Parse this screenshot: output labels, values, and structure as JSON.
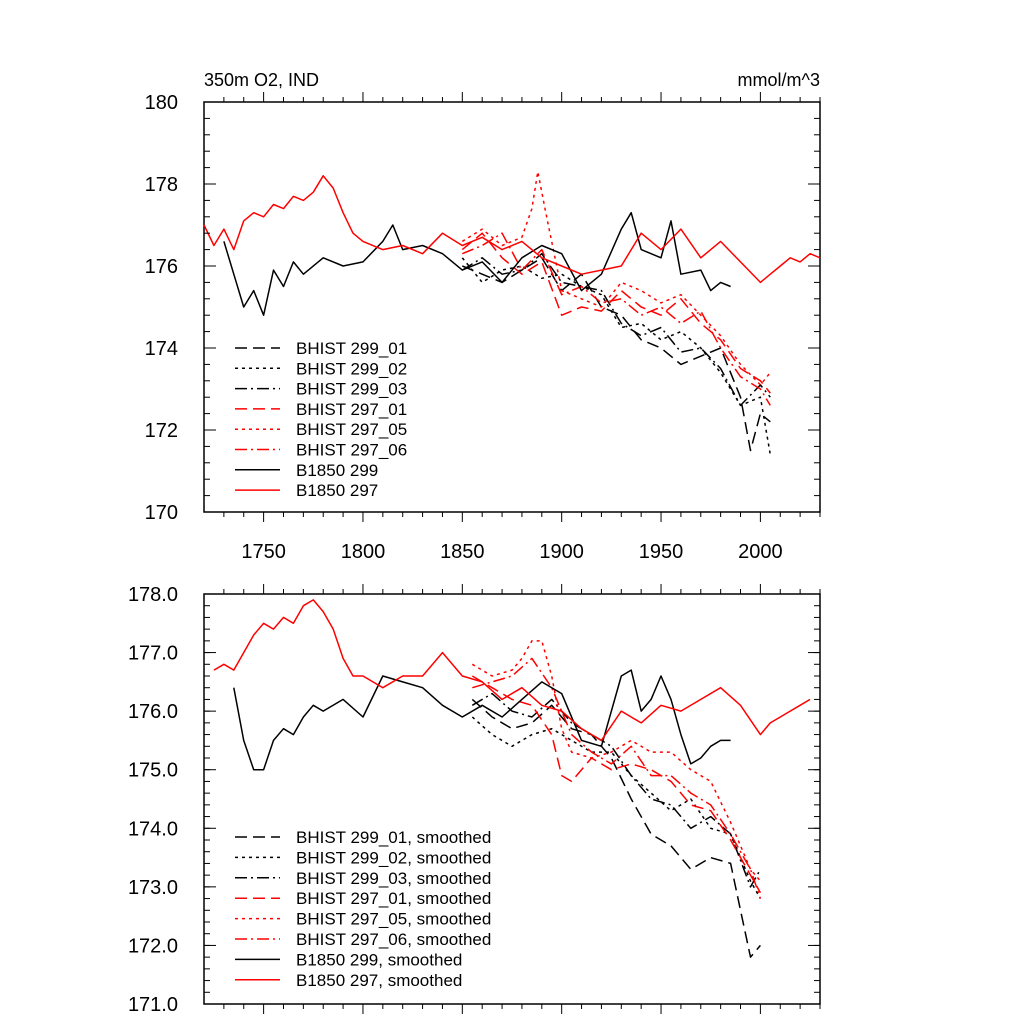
{
  "colors": {
    "black": "#000000",
    "red": "#ff0000"
  },
  "chart_data": [
    {
      "type": "line",
      "title": "350m O2, IND",
      "units": "mmol/m^3",
      "xlim": [
        1720,
        2030
      ],
      "ylim": [
        170,
        180
      ],
      "xticks": [
        1750,
        1800,
        1850,
        1900,
        1950,
        2000
      ],
      "yticks": [
        170,
        172,
        174,
        176,
        178,
        180
      ],
      "ytick_labels": [
        "170",
        "172",
        "174",
        "176",
        "178",
        "180"
      ],
      "series": [
        {
          "name": "BHIST 299_01",
          "color": "#000000",
          "dash": "dashed",
          "x": [
            1850,
            1860,
            1870,
            1880,
            1890,
            1900,
            1910,
            1920,
            1930,
            1940,
            1950,
            1960,
            1970,
            1980,
            1990,
            1995,
            2000,
            2005
          ],
          "y": [
            176.0,
            175.8,
            175.6,
            175.9,
            176.2,
            175.4,
            175.8,
            175.0,
            174.8,
            174.2,
            174.0,
            173.6,
            173.8,
            174.0,
            172.8,
            171.5,
            172.4,
            172.2
          ]
        },
        {
          "name": "BHIST 299_02",
          "color": "#000000",
          "dash": "dotted",
          "x": [
            1850,
            1860,
            1870,
            1880,
            1890,
            1900,
            1910,
            1920,
            1930,
            1940,
            1950,
            1960,
            1970,
            1980,
            1990,
            2000,
            2005
          ],
          "y": [
            176.2,
            175.6,
            175.9,
            176.0,
            175.7,
            175.8,
            175.5,
            175.3,
            174.5,
            174.6,
            174.2,
            174.4,
            174.0,
            173.4,
            172.6,
            172.8,
            171.4
          ]
        },
        {
          "name": "BHIST 299_03",
          "color": "#000000",
          "dash": "dashdot",
          "x": [
            1850,
            1860,
            1870,
            1880,
            1890,
            1900,
            1910,
            1920,
            1930,
            1940,
            1950,
            1960,
            1970,
            1980,
            1990,
            2000,
            2005
          ],
          "y": [
            175.9,
            176.2,
            175.8,
            175.9,
            176.3,
            175.6,
            175.5,
            175.4,
            174.6,
            174.3,
            174.5,
            173.9,
            174.0,
            173.5,
            172.6,
            173.1,
            172.8
          ]
        },
        {
          "name": "BHIST 297_01",
          "color": "#ff0000",
          "dash": "dashed",
          "x": [
            1850,
            1860,
            1870,
            1880,
            1890,
            1900,
            1910,
            1920,
            1930,
            1940,
            1950,
            1960,
            1970,
            1980,
            1990,
            2000,
            2005
          ],
          "y": [
            176.4,
            176.8,
            176.2,
            175.8,
            176.1,
            174.8,
            175.0,
            174.9,
            175.4,
            175.0,
            174.8,
            175.2,
            174.6,
            174.2,
            173.5,
            173.2,
            172.9
          ]
        },
        {
          "name": "BHIST 297_05",
          "color": "#ff0000",
          "dash": "dotted",
          "x": [
            1850,
            1860,
            1870,
            1880,
            1885,
            1888,
            1892,
            1900,
            1910,
            1920,
            1930,
            1940,
            1950,
            1960,
            1970,
            1980,
            1990,
            2000,
            2005
          ],
          "y": [
            176.6,
            176.9,
            176.5,
            176.7,
            177.4,
            178.3,
            177.3,
            175.4,
            175.2,
            175.0,
            175.6,
            175.4,
            175.1,
            175.3,
            174.8,
            174.3,
            173.6,
            173.1,
            173.4
          ]
        },
        {
          "name": "BHIST 297_06",
          "color": "#ff0000",
          "dash": "dashdot",
          "x": [
            1850,
            1860,
            1870,
            1880,
            1890,
            1900,
            1910,
            1920,
            1930,
            1940,
            1950,
            1960,
            1970,
            1980,
            1990,
            2000,
            2005
          ],
          "y": [
            176.3,
            176.5,
            176.8,
            175.9,
            176.4,
            175.3,
            175.5,
            175.1,
            175.2,
            174.8,
            175.0,
            174.6,
            174.9,
            174.0,
            173.3,
            173.0,
            172.6
          ]
        },
        {
          "name": "B1850 299",
          "color": "#000000",
          "dash": "solid",
          "x": [
            1730,
            1735,
            1740,
            1745,
            1750,
            1755,
            1760,
            1765,
            1770,
            1780,
            1790,
            1800,
            1810,
            1815,
            1820,
            1830,
            1840,
            1850,
            1860,
            1870,
            1880,
            1890,
            1900,
            1910,
            1920,
            1930,
            1935,
            1940,
            1950,
            1955,
            1960,
            1970,
            1975,
            1980,
            1985
          ],
          "y": [
            176.6,
            175.8,
            175.0,
            175.4,
            174.8,
            175.9,
            175.5,
            176.1,
            175.8,
            176.2,
            176.0,
            176.1,
            176.6,
            177.0,
            176.4,
            176.5,
            176.3,
            175.9,
            176.1,
            175.6,
            176.2,
            176.5,
            176.3,
            175.4,
            175.8,
            176.9,
            177.3,
            176.4,
            176.2,
            177.1,
            175.8,
            175.9,
            175.4,
            175.6,
            175.5
          ]
        },
        {
          "name": "B1850 297",
          "color": "#ff0000",
          "dash": "solid",
          "x": [
            1720,
            1725,
            1730,
            1735,
            1740,
            1745,
            1750,
            1755,
            1760,
            1765,
            1770,
            1775,
            1780,
            1785,
            1790,
            1795,
            1800,
            1810,
            1820,
            1830,
            1840,
            1850,
            1860,
            1870,
            1880,
            1890,
            1900,
            1910,
            1920,
            1930,
            1940,
            1950,
            1960,
            1970,
            1980,
            1990,
            2000,
            2005,
            2010,
            2015,
            2020,
            2025,
            2030
          ],
          "y": [
            177.0,
            176.5,
            176.9,
            176.4,
            177.1,
            177.3,
            177.2,
            177.5,
            177.4,
            177.7,
            177.6,
            177.8,
            178.2,
            177.9,
            177.3,
            176.8,
            176.6,
            176.4,
            176.5,
            176.3,
            176.8,
            176.5,
            176.7,
            176.4,
            176.6,
            176.2,
            176.0,
            175.8,
            175.9,
            176.0,
            176.8,
            176.4,
            176.9,
            176.2,
            176.6,
            176.1,
            175.6,
            175.8,
            176.0,
            176.2,
            176.1,
            176.3,
            176.2
          ]
        }
      ]
    },
    {
      "type": "line",
      "title": "",
      "xlim": [
        1720,
        2030
      ],
      "ylim": [
        171.0,
        178.0
      ],
      "xticks": [
        1750,
        1800,
        1850,
        1900,
        1950,
        2000
      ],
      "yticks": [
        171,
        172,
        173,
        174,
        175,
        176,
        177,
        178
      ],
      "ytick_labels": [
        "171.0",
        "172.0",
        "173.0",
        "174.0",
        "175.0",
        "176.0",
        "177.0",
        "178.0"
      ],
      "series": [
        {
          "name": "BHIST 299_01, smoothed",
          "color": "#000000",
          "dash": "dashed",
          "x": [
            1855,
            1865,
            1875,
            1885,
            1895,
            1905,
            1915,
            1925,
            1935,
            1945,
            1955,
            1965,
            1975,
            1985,
            1990,
            1995,
            2000
          ],
          "y": [
            176.2,
            175.9,
            175.7,
            175.8,
            176.1,
            175.7,
            175.6,
            175.2,
            174.5,
            173.9,
            173.7,
            173.3,
            173.5,
            173.4,
            172.6,
            171.8,
            172.0
          ]
        },
        {
          "name": "BHIST 299_02, smoothed",
          "color": "#000000",
          "dash": "dotted",
          "x": [
            1855,
            1865,
            1875,
            1885,
            1895,
            1905,
            1915,
            1925,
            1935,
            1945,
            1955,
            1965,
            1975,
            1985,
            1995,
            2000
          ],
          "y": [
            175.9,
            175.6,
            175.4,
            175.6,
            175.7,
            175.5,
            175.3,
            175.3,
            174.9,
            174.6,
            174.3,
            174.5,
            174.0,
            173.9,
            173.1,
            172.8
          ]
        },
        {
          "name": "BHIST 299_03, smoothed",
          "color": "#000000",
          "dash": "dashdot",
          "x": [
            1855,
            1865,
            1875,
            1885,
            1895,
            1905,
            1915,
            1925,
            1935,
            1945,
            1955,
            1965,
            1975,
            1985,
            1995,
            2000
          ],
          "y": [
            176.1,
            176.3,
            176.0,
            175.9,
            176.2,
            175.8,
            175.6,
            175.4,
            174.9,
            174.5,
            174.4,
            174.0,
            174.2,
            173.9,
            173.0,
            173.3
          ]
        },
        {
          "name": "BHIST 297_01, smoothed",
          "color": "#ff0000",
          "dash": "dashed",
          "x": [
            1855,
            1865,
            1875,
            1885,
            1895,
            1900,
            1905,
            1915,
            1925,
            1935,
            1945,
            1955,
            1965,
            1975,
            1985,
            1995,
            2000
          ],
          "y": [
            176.6,
            176.4,
            176.2,
            176.1,
            175.6,
            174.9,
            174.8,
            175.2,
            175.0,
            175.1,
            175.0,
            174.8,
            174.4,
            174.3,
            173.8,
            173.2,
            172.9
          ]
        },
        {
          "name": "BHIST 297_05, smoothed",
          "color": "#ff0000",
          "dash": "dotted",
          "x": [
            1855,
            1865,
            1875,
            1880,
            1885,
            1890,
            1895,
            1900,
            1905,
            1915,
            1925,
            1935,
            1945,
            1955,
            1965,
            1975,
            1985,
            1995,
            2000
          ],
          "y": [
            176.8,
            176.6,
            176.7,
            176.9,
            177.2,
            177.2,
            176.6,
            175.7,
            175.3,
            175.2,
            175.3,
            175.5,
            175.3,
            175.3,
            175.0,
            174.8,
            174.1,
            173.3,
            173.1
          ]
        },
        {
          "name": "BHIST 297_06, smoothed",
          "color": "#ff0000",
          "dash": "dashdot",
          "x": [
            1855,
            1865,
            1875,
            1885,
            1895,
            1905,
            1915,
            1925,
            1935,
            1945,
            1955,
            1965,
            1975,
            1985,
            1995,
            2000
          ],
          "y": [
            176.4,
            176.5,
            176.6,
            176.9,
            176.4,
            175.6,
            175.3,
            175.1,
            175.4,
            174.9,
            174.9,
            174.6,
            174.4,
            173.9,
            173.3,
            172.8
          ]
        },
        {
          "name": "B1850 299, smoothed",
          "color": "#000000",
          "dash": "solid",
          "x": [
            1735,
            1740,
            1745,
            1750,
            1755,
            1760,
            1765,
            1770,
            1775,
            1780,
            1790,
            1800,
            1810,
            1820,
            1830,
            1840,
            1850,
            1860,
            1870,
            1880,
            1890,
            1900,
            1910,
            1920,
            1930,
            1935,
            1940,
            1945,
            1950,
            1955,
            1960,
            1965,
            1970,
            1975,
            1980,
            1985
          ],
          "y": [
            176.4,
            175.5,
            175.0,
            175.0,
            175.5,
            175.7,
            175.6,
            175.9,
            176.1,
            176.0,
            176.2,
            175.9,
            176.6,
            176.5,
            176.4,
            176.1,
            175.9,
            176.1,
            175.9,
            176.2,
            176.5,
            176.3,
            175.5,
            175.4,
            176.6,
            176.7,
            176.0,
            176.2,
            176.6,
            176.2,
            175.6,
            175.1,
            175.2,
            175.4,
            175.5,
            175.5
          ]
        },
        {
          "name": "B1850 297, smoothed",
          "color": "#ff0000",
          "dash": "solid",
          "x": [
            1725,
            1730,
            1735,
            1740,
            1745,
            1750,
            1755,
            1760,
            1765,
            1770,
            1775,
            1780,
            1785,
            1790,
            1795,
            1800,
            1810,
            1820,
            1830,
            1840,
            1850,
            1860,
            1870,
            1880,
            1890,
            1900,
            1910,
            1920,
            1930,
            1940,
            1950,
            1960,
            1970,
            1980,
            1990,
            2000,
            2005,
            2010,
            2015,
            2020,
            2025
          ],
          "y": [
            176.7,
            176.8,
            176.7,
            177.0,
            177.3,
            177.5,
            177.4,
            177.6,
            177.5,
            177.8,
            177.9,
            177.7,
            177.4,
            176.9,
            176.6,
            176.6,
            176.4,
            176.6,
            176.6,
            177.0,
            176.6,
            176.5,
            176.2,
            176.4,
            176.1,
            176.0,
            175.7,
            175.5,
            176.0,
            175.8,
            176.1,
            176.0,
            176.2,
            176.4,
            176.1,
            175.6,
            175.8,
            175.9,
            176.0,
            176.1,
            176.2
          ]
        }
      ]
    }
  ]
}
